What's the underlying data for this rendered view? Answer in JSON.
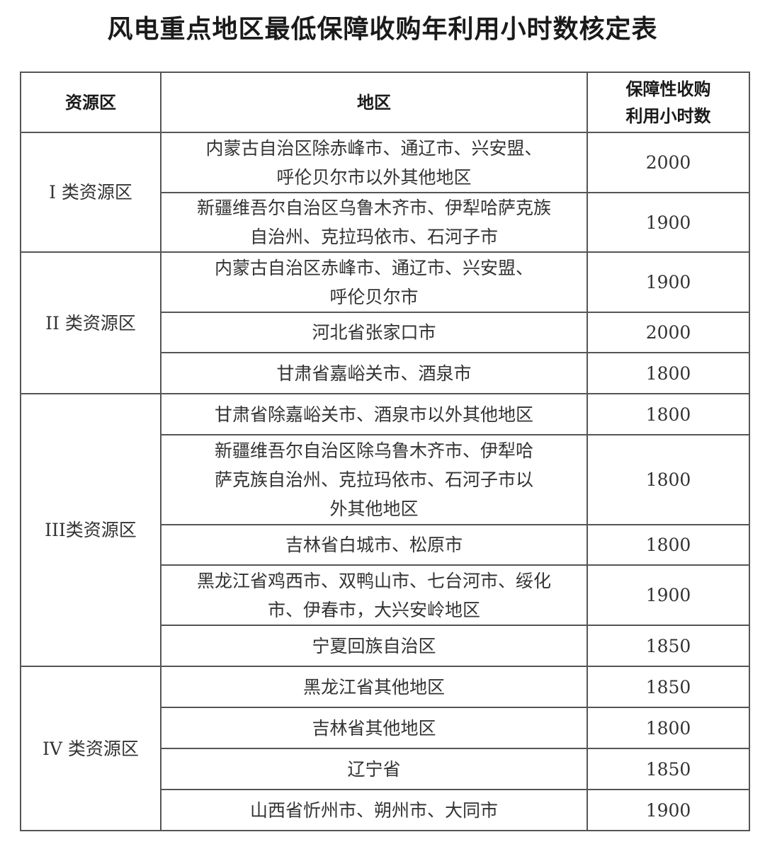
{
  "title": "风电重点地区最低保障收购年利用小时数核定表",
  "table": {
    "headers": [
      "资源区",
      "地区",
      "保障性收购|利用小时数"
    ],
    "zones": [
      {
        "name": "I 类资源区",
        "rows": [
          {
            "region": [
              "内蒙古自治区除赤峰市、通辽市、兴安盟、",
              "呼伦贝尔市以外其他地区"
            ],
            "hours": "2000"
          },
          {
            "region": [
              "新疆维吾尔自治区乌鲁木齐市、伊犁哈萨克族",
              "自治州、克拉玛依市、石河子市"
            ],
            "hours": "1900"
          }
        ]
      },
      {
        "name": "II 类资源区",
        "rows": [
          {
            "region": [
              "内蒙古自治区赤峰市、通辽市、兴安盟、",
              "呼伦贝尔市"
            ],
            "hours": "1900"
          },
          {
            "region": [
              "河北省张家口市"
            ],
            "hours": "2000"
          },
          {
            "region": [
              "甘肃省嘉峪关市、酒泉市"
            ],
            "hours": "1800"
          }
        ]
      },
      {
        "name": "III类资源区",
        "rows": [
          {
            "region": [
              "甘肃省除嘉峪关市、酒泉市以外其他地区"
            ],
            "hours": "1800"
          },
          {
            "region": [
              "新疆维吾尔自治区除乌鲁木齐市、伊犁哈",
              "萨克族自治州、克拉玛依市、石河子市以",
              "外其他地区"
            ],
            "hours": "1800"
          },
          {
            "region": [
              "吉林省白城市、松原市"
            ],
            "hours": "1800"
          },
          {
            "region": [
              "黑龙江省鸡西市、双鸭山市、七台河市、绥化",
              "市、伊春市，大兴安岭地区"
            ],
            "hours": "1900"
          },
          {
            "region": [
              "宁夏回族自治区"
            ],
            "hours": "1850"
          }
        ]
      },
      {
        "name": "IV 类资源区",
        "rows": [
          {
            "region": [
              "黑龙江省其他地区"
            ],
            "hours": "1850"
          },
          {
            "region": [
              "吉林省其他地区"
            ],
            "hours": "1800"
          },
          {
            "region": [
              "辽宁省"
            ],
            "hours": "1850"
          },
          {
            "region": [
              "山西省忻州市、朔州市、大同市"
            ],
            "hours": "1900"
          }
        ]
      }
    ]
  }
}
